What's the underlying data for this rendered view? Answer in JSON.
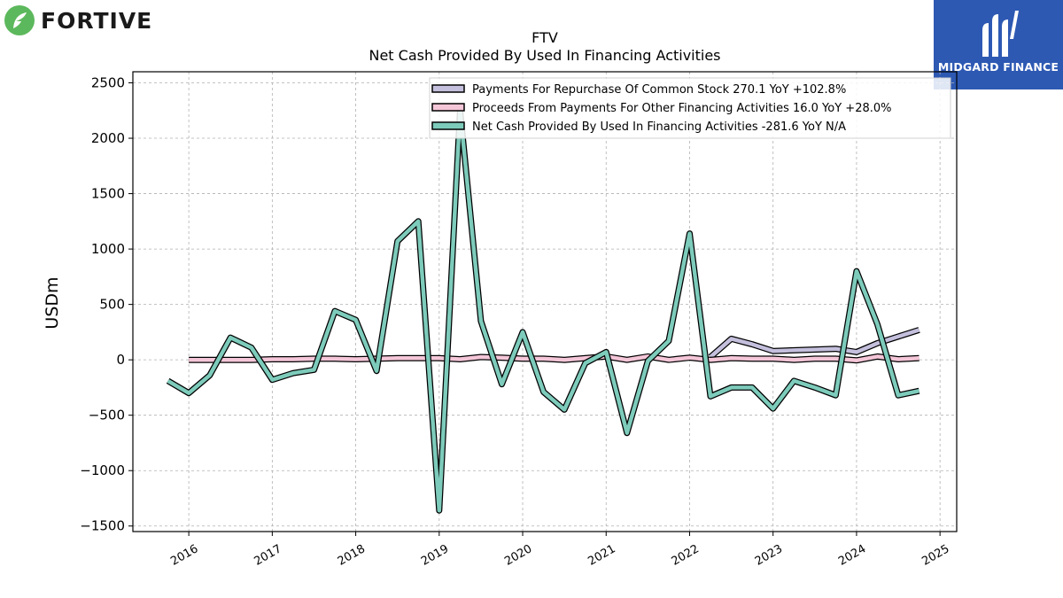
{
  "logos": {
    "left_brand": "FORTIVE",
    "right_brand": "MIDGARD FINANCE",
    "left_icon": "fortive-leaf-icon",
    "right_icon": "midgard-m-icon",
    "left_color": "#5cb85c",
    "right_bg": "#2d59b3"
  },
  "chart_data": {
    "type": "line",
    "title": "FTV",
    "subtitle": "Net Cash Provided By Used In Financing Activities",
    "ylabel": "USDm",
    "xlabel": "",
    "ylim": [
      -1550,
      2600
    ],
    "xlim": [
      2015.33,
      2025.2
    ],
    "yticks": [
      -1500,
      -1000,
      -500,
      0,
      500,
      1000,
      1500,
      2000,
      2500
    ],
    "ytick_labels": [
      "−1500",
      "−1000",
      "−500",
      "0",
      "500",
      "1000",
      "1500",
      "2000",
      "2500"
    ],
    "xticks": [
      2016,
      2017,
      2018,
      2019,
      2020,
      2021,
      2022,
      2023,
      2024,
      2025
    ],
    "xtick_labels": [
      "2016",
      "2017",
      "2018",
      "2019",
      "2020",
      "2021",
      "2022",
      "2023",
      "2024",
      "2025"
    ],
    "grid": true,
    "legend_position": "top-right",
    "series": [
      {
        "name": "Payments For Repurchase Of Common Stock",
        "legend_label": "Payments For Repurchase Of Common Stock  270.1 YoY +102.8%",
        "color": "#c4bfdc",
        "x": [
          2022.25,
          2022.5,
          2022.75,
          2023.0,
          2023.75,
          2024.0,
          2024.25,
          2024.5,
          2024.75
        ],
        "values": [
          25,
          190,
          140,
          80,
          100,
          70,
          150,
          210,
          270
        ]
      },
      {
        "name": "Proceeds From Payments For Other Financing Activities",
        "legend_label": "Proceeds From Payments For Other Financing Activities  16.0 YoY +28.0%",
        "color": "#f4c6d8",
        "x": [
          2016.0,
          2016.25,
          2016.5,
          2016.75,
          2017.0,
          2017.25,
          2017.5,
          2017.75,
          2018.0,
          2018.25,
          2018.5,
          2018.75,
          2019.0,
          2019.25,
          2019.5,
          2019.75,
          2020.0,
          2020.25,
          2020.5,
          2020.75,
          2021.0,
          2021.25,
          2021.5,
          2021.75,
          2022.0,
          2022.25,
          2022.5,
          2022.75,
          2023.0,
          2023.25,
          2023.5,
          2023.75,
          2024.0,
          2024.25,
          2024.5,
          2024.75
        ],
        "values": [
          0,
          0,
          0,
          0,
          5,
          5,
          10,
          10,
          5,
          10,
          15,
          15,
          15,
          5,
          25,
          20,
          10,
          10,
          0,
          15,
          30,
          0,
          30,
          0,
          20,
          0,
          15,
          10,
          10,
          0,
          10,
          10,
          -5,
          30,
          5,
          16
        ]
      },
      {
        "name": "Net Cash Provided By Used In Financing Activities",
        "legend_label": "Net Cash Provided By Used In Financing Activities  -281.6 YoY N/A",
        "color": "#7dcbbb",
        "x": [
          2015.75,
          2016.0,
          2016.25,
          2016.5,
          2016.75,
          2017.0,
          2017.25,
          2017.5,
          2017.75,
          2018.0,
          2018.25,
          2018.5,
          2018.75,
          2019.0,
          2019.25,
          2019.5,
          2019.75,
          2020.0,
          2020.25,
          2020.5,
          2020.75,
          2021.0,
          2021.25,
          2021.5,
          2021.75,
          2022.0,
          2022.25,
          2022.5,
          2022.75,
          2023.0,
          2023.25,
          2023.5,
          2023.75,
          2024.0,
          2024.25,
          2024.5,
          2024.75
        ],
        "values": [
          -190,
          -300,
          -140,
          200,
          110,
          -180,
          -120,
          -90,
          440,
          360,
          -100,
          1070,
          1250,
          -1360,
          2250,
          350,
          -220,
          250,
          -290,
          -450,
          -30,
          70,
          -660,
          -10,
          170,
          1140,
          -330,
          -250,
          -250,
          -440,
          -190,
          -250,
          -320,
          800,
          320,
          -320,
          -280
        ]
      }
    ]
  }
}
